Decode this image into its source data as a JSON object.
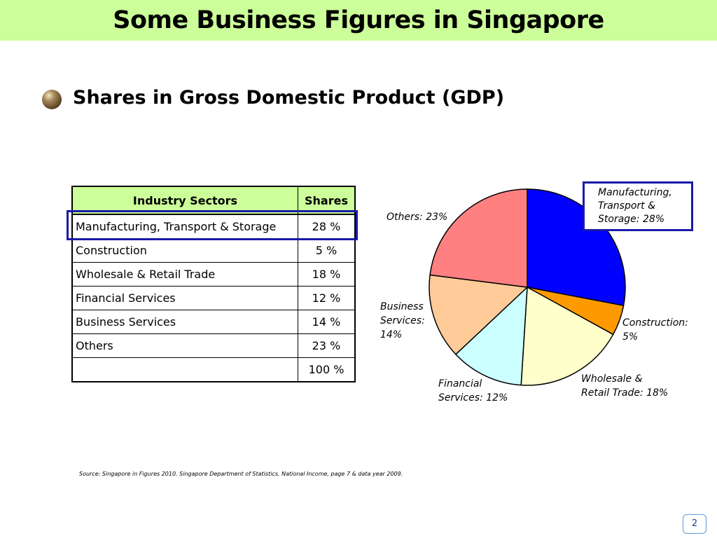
{
  "slide": {
    "title": "Some Business Figures in Singapore",
    "subtitle": "Shares in Gross Domestic Product (GDP)",
    "source": "Source: Singapore in Figures 2010. Singapore Department of Statistics. National Income, page 7 & data year 2009.",
    "page_number": "2"
  },
  "table": {
    "headers": [
      "Industry Sectors",
      "Shares"
    ],
    "rows": [
      [
        "Manufacturing, Transport & Storage",
        "28 %"
      ],
      [
        "Construction",
        "5 %"
      ],
      [
        "Wholesale & Retail Trade",
        "18 %"
      ],
      [
        "Financial Services",
        "12 %"
      ],
      [
        "Business Services",
        "14 %"
      ],
      [
        "Others",
        "23 %"
      ],
      [
        "",
        "100 %"
      ]
    ]
  },
  "chart_data": {
    "type": "pie",
    "categories": [
      "Manufacturing, Transport & Storage",
      "Construction",
      "Wholesale & Retail Trade",
      "Financial Services",
      "Business Services",
      "Others"
    ],
    "values": [
      28,
      5,
      18,
      12,
      14,
      23
    ],
    "labels": [
      "Manufacturing,\nTransport &\nStorage: 28%",
      "Construction:\n5%",
      "Wholesale &\nRetail Trade: 18%",
      "Financial\nServices: 12%",
      "Business\nServices:\n14%",
      "Others: 23%"
    ],
    "colors": [
      "#0000ff",
      "#ff9900",
      "#ffffcc",
      "#ccffff",
      "#ffcc99",
      "#ff8080"
    ],
    "start": "12 o'clock, clockwise"
  }
}
